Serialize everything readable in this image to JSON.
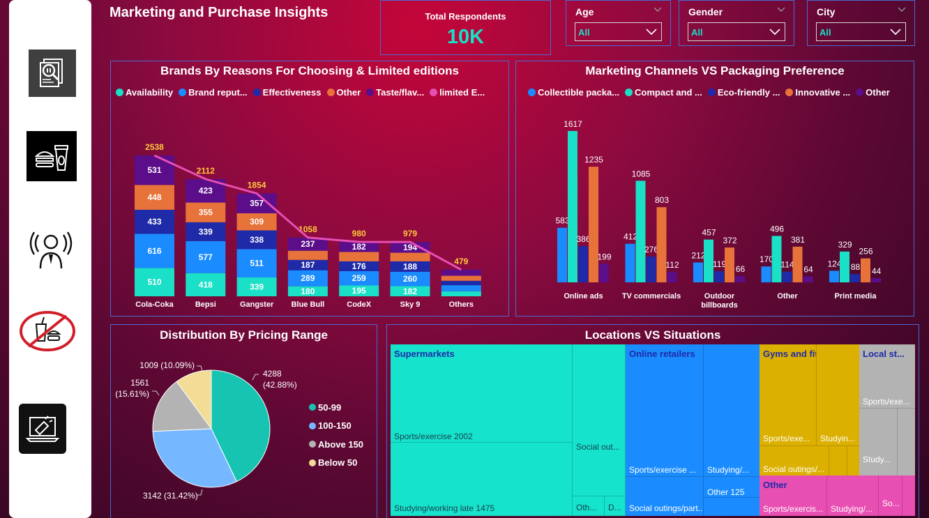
{
  "header": {
    "title": "Marketing and Purchase Insights"
  },
  "kpi": {
    "label": "Total Respondents",
    "value": "10K"
  },
  "slicers": [
    {
      "label": "Age",
      "value": "All"
    },
    {
      "label": "Gender",
      "value": "All"
    },
    {
      "label": "City",
      "value": "All"
    }
  ],
  "sidebar": {
    "items": [
      {
        "icon": "report-analysis-icon"
      },
      {
        "icon": "food-drink-icon"
      },
      {
        "icon": "broadcast-person-icon"
      },
      {
        "icon": "no-fast-food-icon"
      },
      {
        "icon": "marketing-megaphone-icon"
      }
    ]
  },
  "colors": {
    "teal": "#19e0c6",
    "blue": "#1a8cff",
    "navy": "#1e2aa8",
    "orange": "#e8733a",
    "purple": "#5b0d8a",
    "pink": "#e84fb3",
    "value_label": "#ffc83a"
  },
  "brands": {
    "title": "Brands By Reasons For Choosing & Limited editions",
    "legend": [
      "Availability",
      "Brand reput...",
      "Effectiveness",
      "Other",
      "Taste/flav...",
      "limited E..."
    ],
    "chart_data": {
      "type": "bar",
      "stacked": true,
      "categories": [
        "Cola-Coka",
        "Bepsi",
        "Gangster",
        "Blue Bull",
        "CodeX",
        "Sky 9",
        "Others"
      ],
      "series": [
        {
          "name": "Availability",
          "values": [
            510,
            418,
            339,
            180,
            195,
            182,
            90
          ]
        },
        {
          "name": "Brand reput...",
          "values": [
            616,
            577,
            511,
            289,
            259,
            260,
            110
          ]
        },
        {
          "name": "Effectiveness",
          "values": [
            433,
            339,
            338,
            187,
            176,
            188,
            80
          ]
        },
        {
          "name": "Other",
          "values": [
            448,
            355,
            309,
            165,
            170,
            155,
            90
          ]
        },
        {
          "name": "Taste/flav...",
          "values": [
            531,
            423,
            357,
            237,
            182,
            194,
            109
          ]
        }
      ],
      "line": {
        "name": "limited E...",
        "values": [
          2538,
          2112,
          1854,
          1058,
          980,
          979,
          479
        ]
      },
      "segment_labels": {
        "Cola-Coka": [
          "510",
          "616",
          "433",
          "448",
          "531"
        ],
        "Bepsi": [
          "418",
          "577",
          "339",
          "355",
          "423"
        ],
        "Gangster": [
          "339",
          "511",
          "338",
          "309",
          "357"
        ],
        "Blue Bull": [
          "180",
          "289",
          "187",
          "",
          "237"
        ],
        "CodeX": [
          "195",
          "259",
          "176",
          "",
          "182"
        ],
        "Sky 9": [
          "182",
          "260",
          "188",
          "",
          "194"
        ],
        "Others": [
          "",
          "",
          "",
          "",
          ""
        ]
      }
    }
  },
  "channels": {
    "title": "Marketing Channels VS Packaging Preference",
    "legend": [
      "Collectible packa...",
      "Compact and ...",
      "Eco-friendly ...",
      "Innovative ...",
      "Other"
    ],
    "chart_data": {
      "type": "bar",
      "categories": [
        "Online ads",
        "TV commercials",
        "Outdoor billboards",
        "Other",
        "Print media"
      ],
      "category_lines": [
        [
          "Online ads"
        ],
        [
          "TV commercials"
        ],
        [
          "Outdoor",
          "billboards"
        ],
        [
          "Other"
        ],
        [
          "Print media"
        ]
      ],
      "series": [
        {
          "name": "Collectible packa...",
          "values": [
            583,
            412,
            212,
            170,
            124
          ]
        },
        {
          "name": "Compact and ...",
          "values": [
            1617,
            1085,
            457,
            496,
            329
          ]
        },
        {
          "name": "Eco-friendly ...",
          "values": [
            386,
            276,
            119,
            114,
            88
          ]
        },
        {
          "name": "Innovative ...",
          "values": [
            1235,
            803,
            372,
            381,
            256
          ]
        },
        {
          "name": "Other",
          "values": [
            199,
            112,
            66,
            64,
            44
          ]
        }
      ]
    }
  },
  "pricing": {
    "title": "Distribution By Pricing Range",
    "legend": [
      "50-99",
      "100-150",
      "Above 150",
      "Below 50"
    ],
    "chart_data": {
      "type": "pie",
      "slices": [
        {
          "name": "50-99",
          "value": 4288,
          "label": "4288 (42.88%)"
        },
        {
          "name": "100-150",
          "value": 3142,
          "label": "3142 (31.42%)"
        },
        {
          "name": "Above 150",
          "value": 1561,
          "label": "1561 (15.61%)"
        },
        {
          "name": "Below 50",
          "value": 1009,
          "label": "1009 (10.09%)"
        }
      ]
    }
  },
  "locations": {
    "title": "Locations VS Situations",
    "groups": [
      {
        "name": "Supermarkets",
        "leaves": [
          "Sports/exercise 2002",
          "Studying/working late 1475",
          "Social out...",
          "Oth...",
          "D..."
        ]
      },
      {
        "name": "Online retailers",
        "leaves": [
          "Sports/exercise ...",
          "Studying/...",
          "Other 125",
          "Social outings/part..."
        ]
      },
      {
        "name": "Gyms and fitness ...",
        "leaves": [
          "Sports/exe...",
          "Studyin...",
          "Social outings/..."
        ]
      },
      {
        "name": "Local st...",
        "leaves": [
          "Sports/exe...",
          "Study..."
        ]
      },
      {
        "name": "Other",
        "leaves": [
          "Sports/exercis...",
          "Studying/...",
          "So..."
        ]
      }
    ]
  }
}
